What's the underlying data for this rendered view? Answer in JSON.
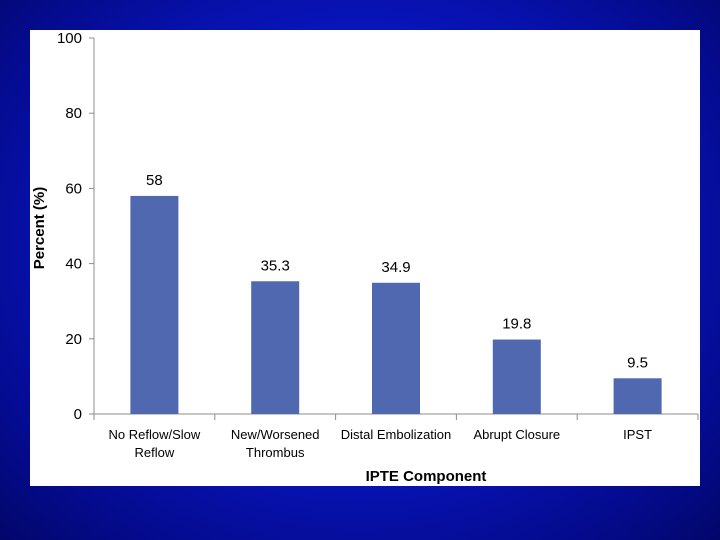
{
  "chart_data": {
    "type": "bar",
    "title": "",
    "xlabel": "IPTE Component",
    "ylabel": "Percent (%)",
    "categories": [
      [
        "No Reflow/Slow",
        "Reflow"
      ],
      [
        "New/Worsened",
        "Thrombus"
      ],
      [
        "Distal Embolization"
      ],
      [
        "Abrupt Closure"
      ],
      [
        "IPST"
      ]
    ],
    "values": [
      58,
      35.3,
      34.9,
      19.8,
      9.5
    ],
    "data_labels": [
      "58",
      "35.3",
      "34.9",
      "19.8",
      "9.5"
    ],
    "ylim": [
      0,
      100
    ],
    "yticks": [
      0,
      20,
      40,
      60,
      80,
      100
    ],
    "grid": false,
    "legend": "none",
    "bar_color": "#5068B0"
  }
}
